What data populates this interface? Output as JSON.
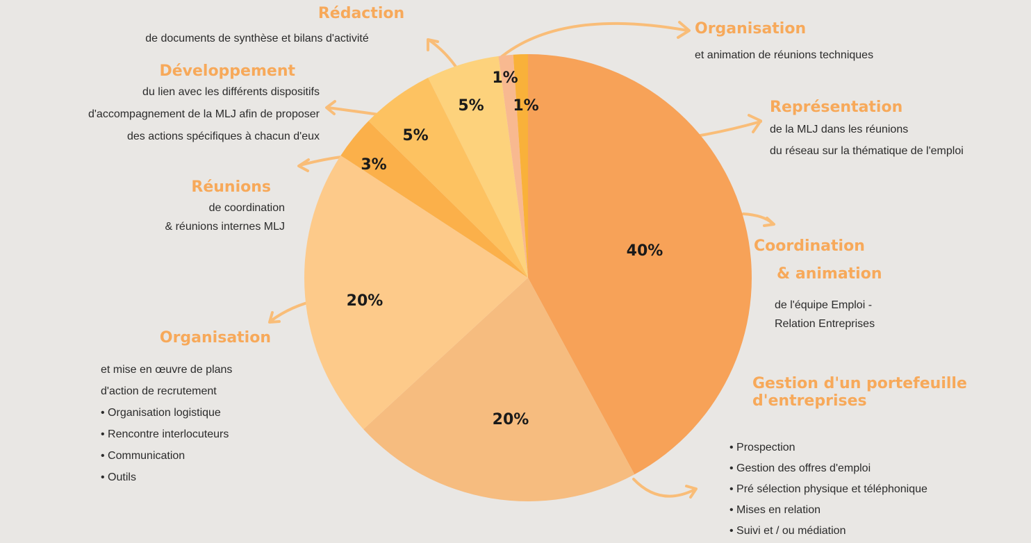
{
  "chart_data": {
    "type": "pie",
    "categories": [
      [
        "Coordination",
        "& animation"
      ],
      [
        "Gestion d'un portefeuille",
        "d'entreprises"
      ],
      [
        "Organisation"
      ],
      [
        "Réunions"
      ],
      [
        "Développement"
      ],
      [
        "Rédaction"
      ],
      [
        "Organisation"
      ],
      [
        "Représentation"
      ]
    ],
    "descriptions": [
      [
        "de l'équipe Emploi -",
        "Relation Entreprises"
      ],
      [
        "• Prospection",
        "• Gestion des offres d'emploi",
        "• Pré sélection physique et téléphonique",
        "• Mises en relation",
        "• Suivi et / ou médiation"
      ],
      [
        "et mise en œuvre de plans",
        "d'action de recrutement",
        "• Organisation logistique",
        "• Rencontre interlocuteurs",
        "• Communication",
        "• Outils"
      ],
      [
        "de coordination",
        "& réunions internes MLJ"
      ],
      [
        "du lien avec les différents dispositifs",
        "d'accompagnement de la MLJ afin de proposer",
        "des actions spécifiques à chacun d'eux"
      ],
      [
        "de documents de synthèse et bilans d'activité"
      ],
      [
        "et animation de réunions techniques"
      ],
      [
        "de la MLJ dans les réunions",
        "du réseau sur la thématique de l'emploi"
      ]
    ],
    "values": [
      40,
      20,
      20,
      3,
      5,
      5,
      1,
      1
    ],
    "value_labels": [
      "40%",
      "20%",
      "20%",
      "3%",
      "5%",
      "5%",
      "1%",
      "1%"
    ],
    "colors": [
      "#f7a258",
      "#f6bc7f",
      "#fdca8a",
      "#fbb04a",
      "#fdc261",
      "#fdd27c",
      "#f8b990",
      "#f9b13a"
    ]
  }
}
